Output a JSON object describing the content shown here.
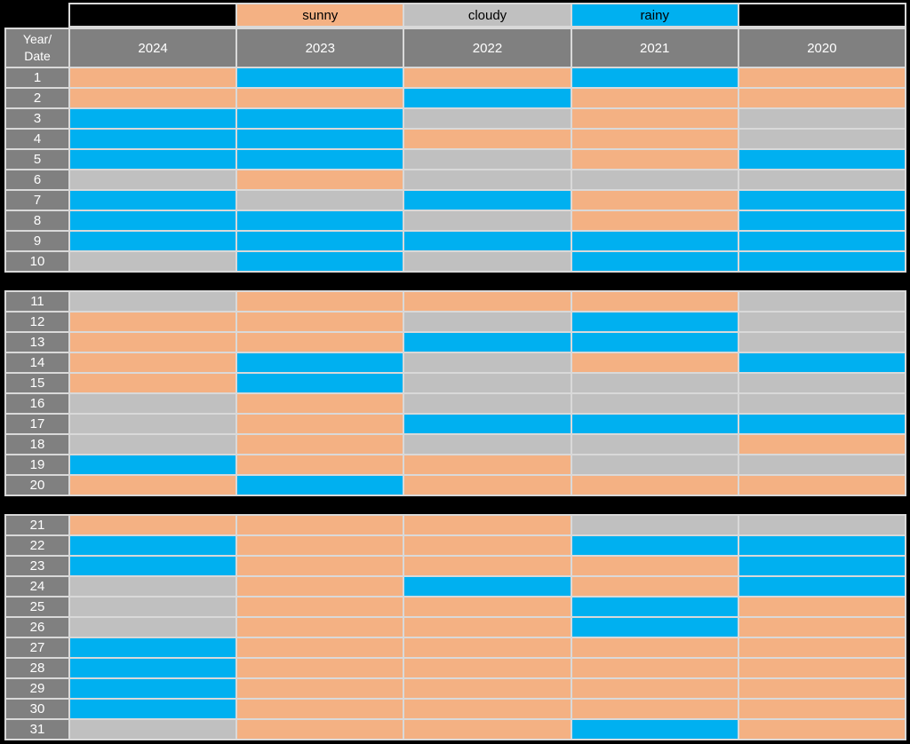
{
  "colors": {
    "background": "#000000",
    "grid_line": "#D9D9D9",
    "header_bg": "#808080",
    "header_text": "#FFFFFF",
    "legend_text": "#000000"
  },
  "chart_data": {
    "type": "table",
    "title": "",
    "corner_label": "Year/\nDate",
    "x_categories": [
      "2024",
      "2023",
      "2022",
      "2021",
      "2020"
    ],
    "y_categories": [
      1,
      2,
      3,
      4,
      5,
      6,
      7,
      8,
      9,
      10,
      11,
      12,
      13,
      14,
      15,
      16,
      17,
      18,
      19,
      20,
      21,
      22,
      23,
      24,
      25,
      26,
      27,
      28,
      29,
      30,
      31
    ],
    "legend": [
      {
        "label": "sunny",
        "color": "#F4B183"
      },
      {
        "label": "cloudy",
        "color": "#C0C0C0"
      },
      {
        "label": "rainy",
        "color": "#00B0F0"
      }
    ],
    "legend_position": "top",
    "grid": true,
    "row_groups": [
      [
        1,
        10
      ],
      [
        11,
        20
      ],
      [
        21,
        31
      ]
    ],
    "cells": {
      "1": [
        "sunny",
        "rainy",
        "sunny",
        "rainy",
        "sunny"
      ],
      "2": [
        "sunny",
        "sunny",
        "rainy",
        "sunny",
        "sunny"
      ],
      "3": [
        "rainy",
        "rainy",
        "cloudy",
        "sunny",
        "cloudy"
      ],
      "4": [
        "rainy",
        "rainy",
        "sunny",
        "sunny",
        "cloudy"
      ],
      "5": [
        "rainy",
        "rainy",
        "cloudy",
        "sunny",
        "rainy"
      ],
      "6": [
        "cloudy",
        "sunny",
        "cloudy",
        "cloudy",
        "cloudy"
      ],
      "7": [
        "rainy",
        "cloudy",
        "rainy",
        "sunny",
        "rainy"
      ],
      "8": [
        "rainy",
        "rainy",
        "cloudy",
        "sunny",
        "rainy"
      ],
      "9": [
        "rainy",
        "rainy",
        "rainy",
        "rainy",
        "rainy"
      ],
      "10": [
        "cloudy",
        "rainy",
        "cloudy",
        "rainy",
        "rainy"
      ],
      "11": [
        "cloudy",
        "sunny",
        "sunny",
        "sunny",
        "cloudy"
      ],
      "12": [
        "sunny",
        "sunny",
        "cloudy",
        "rainy",
        "cloudy"
      ],
      "13": [
        "sunny",
        "sunny",
        "rainy",
        "rainy",
        "cloudy"
      ],
      "14": [
        "sunny",
        "rainy",
        "cloudy",
        "sunny",
        "rainy"
      ],
      "15": [
        "sunny",
        "rainy",
        "cloudy",
        "cloudy",
        "cloudy"
      ],
      "16": [
        "cloudy",
        "sunny",
        "cloudy",
        "cloudy",
        "cloudy"
      ],
      "17": [
        "cloudy",
        "sunny",
        "rainy",
        "rainy",
        "rainy"
      ],
      "18": [
        "cloudy",
        "sunny",
        "cloudy",
        "cloudy",
        "sunny"
      ],
      "19": [
        "rainy",
        "sunny",
        "sunny",
        "cloudy",
        "cloudy"
      ],
      "20": [
        "sunny",
        "rainy",
        "sunny",
        "sunny",
        "sunny"
      ],
      "21": [
        "sunny",
        "sunny",
        "sunny",
        "cloudy",
        "cloudy"
      ],
      "22": [
        "rainy",
        "sunny",
        "sunny",
        "rainy",
        "rainy"
      ],
      "23": [
        "rainy",
        "sunny",
        "sunny",
        "sunny",
        "rainy"
      ],
      "24": [
        "cloudy",
        "sunny",
        "rainy",
        "sunny",
        "rainy"
      ],
      "25": [
        "cloudy",
        "sunny",
        "sunny",
        "rainy",
        "sunny"
      ],
      "26": [
        "cloudy",
        "sunny",
        "sunny",
        "rainy",
        "sunny"
      ],
      "27": [
        "rainy",
        "sunny",
        "sunny",
        "sunny",
        "sunny"
      ],
      "28": [
        "rainy",
        "sunny",
        "sunny",
        "sunny",
        "sunny"
      ],
      "29": [
        "rainy",
        "sunny",
        "sunny",
        "sunny",
        "sunny"
      ],
      "30": [
        "rainy",
        "sunny",
        "sunny",
        "sunny",
        "sunny"
      ],
      "31": [
        "cloudy",
        "sunny",
        "sunny",
        "rainy",
        "sunny"
      ]
    }
  }
}
